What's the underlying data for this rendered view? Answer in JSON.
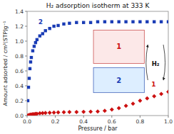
{
  "chart_data": {
    "type": "scatter",
    "title": "H₂ adsorption isotherm at 333 K",
    "x_label": "Pressure / bar",
    "y_label": "Amount adsorbed / cm³(STP)g⁻¹",
    "xlim": [
      0.0,
      1.0
    ],
    "ylim": [
      0.0,
      1.4
    ],
    "xticks": [
      {
        "value": 0.0,
        "label": "0.0"
      },
      0.2,
      0.4,
      0.6,
      0.8,
      {
        "value": 1.0,
        "label": "1.0"
      }
    ],
    "yticks": [
      {
        "value": 0.0,
        "label": "0.0"
      },
      0.2,
      0.4,
      0.6,
      0.8,
      {
        "value": 1.0,
        "label": "1.0"
      },
      1.2,
      1.4
    ],
    "grid": false,
    "series": [
      {
        "name": "2",
        "color": "#1a3cb5",
        "marker": "square",
        "x": [
          0.005,
          0.01,
          0.015,
          0.02,
          0.025,
          0.03,
          0.04,
          0.05,
          0.06,
          0.07,
          0.09,
          0.11,
          0.13,
          0.16,
          0.19,
          0.22,
          0.26,
          0.3,
          0.35,
          0.4,
          0.45,
          0.5,
          0.55,
          0.6,
          0.65,
          0.7,
          0.75,
          0.8,
          0.85,
          0.9,
          0.95,
          1.0
        ],
        "values": [
          0.2,
          0.38,
          0.5,
          0.63,
          0.72,
          0.78,
          0.87,
          0.93,
          0.98,
          1.02,
          1.07,
          1.1,
          1.14,
          1.17,
          1.2,
          1.21,
          1.23,
          1.24,
          1.25,
          1.25,
          1.25,
          1.26,
          1.26,
          1.26,
          1.26,
          1.26,
          1.26,
          1.26,
          1.26,
          1.26,
          1.26,
          1.26
        ]
      },
      {
        "name": "1",
        "color": "#cc1111",
        "marker": "diamond",
        "x": [
          0.005,
          0.01,
          0.015,
          0.02,
          0.025,
          0.03,
          0.04,
          0.05,
          0.06,
          0.07,
          0.09,
          0.11,
          0.13,
          0.16,
          0.19,
          0.22,
          0.26,
          0.3,
          0.35,
          0.4,
          0.45,
          0.5,
          0.55,
          0.6,
          0.65,
          0.7,
          0.75,
          0.8,
          0.85,
          0.9,
          0.95,
          1.0
        ],
        "values": [
          0.0,
          0.005,
          0.007,
          0.01,
          0.012,
          0.014,
          0.018,
          0.02,
          0.023,
          0.025,
          0.03,
          0.033,
          0.035,
          0.038,
          0.04,
          0.042,
          0.045,
          0.047,
          0.048,
          0.05,
          0.052,
          0.055,
          0.065,
          0.08,
          0.1,
          0.13,
          0.16,
          0.2,
          0.23,
          0.26,
          0.29,
          0.32
        ]
      }
    ],
    "annotations": [
      "1",
      "2",
      "H₂"
    ]
  }
}
